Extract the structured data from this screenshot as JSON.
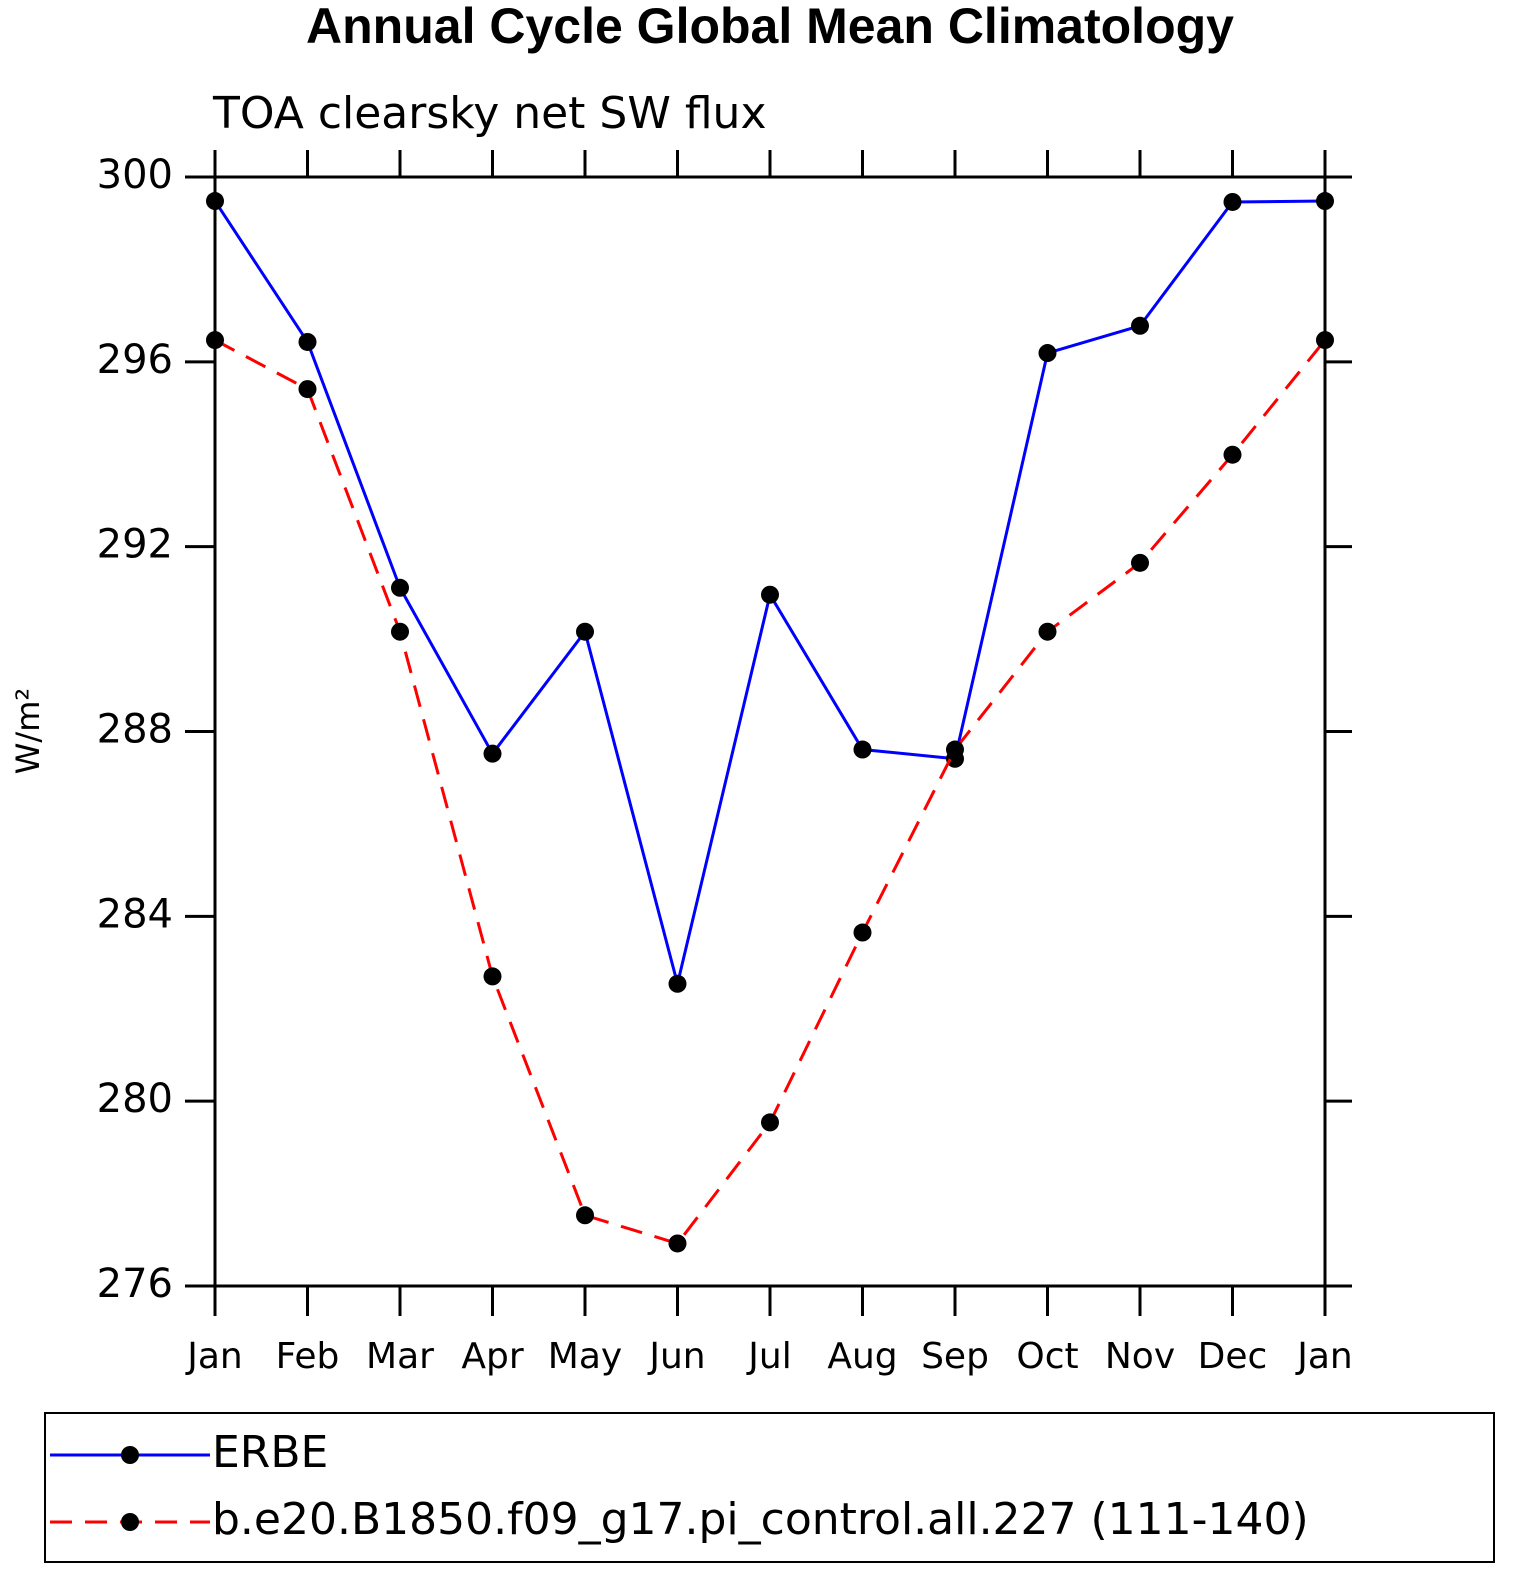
{
  "chart_data": {
    "type": "line",
    "title": "Annual Cycle Global Mean Climatology",
    "subtitle": "TOA clearsky net SW flux",
    "ylabel": "W/m²",
    "categories": [
      "Jan",
      "Feb",
      "Mar",
      "Apr",
      "May",
      "Jun",
      "Jul",
      "Aug",
      "Sep",
      "Oct",
      "Nov",
      "Dec",
      "Jan"
    ],
    "series": [
      {
        "name": "ERBE",
        "color": "#0000ff",
        "linestyle": "solid",
        "values": [
          299.48,
          296.43,
          291.11,
          287.52,
          290.16,
          282.54,
          290.96,
          287.61,
          287.41,
          296.19,
          296.78,
          299.46,
          299.48
        ]
      },
      {
        "name": "b.e20.B1850.f09_g17.pi_control.all.227 (111-140)",
        "color": "#ff0000",
        "linestyle": "dashed",
        "values": [
          296.47,
          295.41,
          290.16,
          282.7,
          277.53,
          276.92,
          279.54,
          283.65,
          287.61,
          290.16,
          291.65,
          293.99,
          296.47
        ]
      }
    ],
    "ylim": [
      276,
      300
    ],
    "yticks": [
      276,
      280,
      284,
      288,
      292,
      296,
      300
    ],
    "marker_color": "#000000",
    "grid": false
  }
}
